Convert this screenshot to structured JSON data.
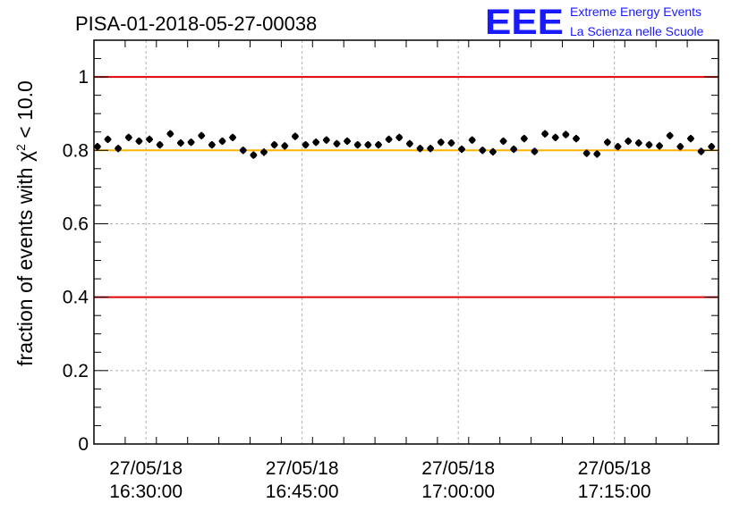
{
  "chart_data": {
    "type": "scatter",
    "title": "PISA-01-2018-05-27-00038",
    "ylabel": "fraction of events with χ",
    "ylabel_sup": "2",
    "ylabel_suffix": " < 10.0",
    "xlabel": "",
    "ylim": [
      0,
      1.1
    ],
    "yticks": [
      "0",
      "0.2",
      "0.4",
      "0.6",
      "0.8",
      "1"
    ],
    "yticks_values": [
      0,
      0.2,
      0.4,
      0.6,
      0.8,
      1.0
    ],
    "xlim": [
      "2018-05-27 16:25:00",
      "2018-05-27 17:25:00"
    ],
    "xticks": [
      {
        "value": "2018-05-27 16:30:00",
        "date": "27/05/18",
        "time": "16:30:00"
      },
      {
        "value": "2018-05-27 16:45:00",
        "date": "27/05/18",
        "time": "16:45:00"
      },
      {
        "value": "2018-05-27 17:00:00",
        "date": "27/05/18",
        "time": "17:00:00"
      },
      {
        "value": "2018-05-27 17:15:00",
        "date": "27/05/18",
        "time": "17:15:00"
      }
    ],
    "grid": true,
    "reference_lines": [
      {
        "y": 1.0,
        "color": "#e00000"
      },
      {
        "y": 0.8,
        "color": "#ffb300"
      },
      {
        "y": 0.4,
        "color": "#e00000"
      }
    ],
    "series": [
      {
        "color": "#000000",
        "x": [
          "16:25:20",
          "16:26:20",
          "16:27:20",
          "16:28:20",
          "16:29:20",
          "16:30:20",
          "16:31:20",
          "16:32:20",
          "16:33:20",
          "16:34:20",
          "16:35:20",
          "16:36:20",
          "16:37:20",
          "16:38:20",
          "16:39:20",
          "16:40:20",
          "16:41:20",
          "16:42:20",
          "16:43:20",
          "16:44:20",
          "16:45:20",
          "16:46:20",
          "16:47:20",
          "16:48:20",
          "16:49:20",
          "16:50:20",
          "16:51:20",
          "16:52:20",
          "16:53:20",
          "16:54:20",
          "16:55:20",
          "16:56:20",
          "16:57:20",
          "16:58:20",
          "16:59:20",
          "17:00:20",
          "17:01:20",
          "17:02:20",
          "17:03:20",
          "17:04:20",
          "17:05:20",
          "17:06:20",
          "17:07:20",
          "17:08:20",
          "17:09:20",
          "17:10:20",
          "17:11:20",
          "17:12:20",
          "17:13:20",
          "17:14:20",
          "17:15:20",
          "17:16:20",
          "17:17:20",
          "17:18:20",
          "17:19:20",
          "17:20:20",
          "17:21:20",
          "17:22:20",
          "17:23:20",
          "17:24:20"
        ],
        "y": [
          0.81,
          0.83,
          0.805,
          0.835,
          0.825,
          0.83,
          0.815,
          0.845,
          0.82,
          0.822,
          0.84,
          0.815,
          0.825,
          0.835,
          0.8,
          0.787,
          0.795,
          0.815,
          0.812,
          0.838,
          0.815,
          0.822,
          0.828,
          0.818,
          0.825,
          0.815,
          0.815,
          0.815,
          0.83,
          0.835,
          0.818,
          0.805,
          0.805,
          0.822,
          0.82,
          0.803,
          0.828,
          0.8,
          0.796,
          0.825,
          0.803,
          0.832,
          0.797,
          0.845,
          0.835,
          0.843,
          0.832,
          0.792,
          0.79,
          0.822,
          0.81,
          0.825,
          0.82,
          0.815,
          0.812,
          0.84,
          0.81,
          0.832,
          0.797,
          0.81
        ],
        "yerr": 0.01,
        "xerr_seconds": 20
      }
    ]
  },
  "logo": {
    "letters": "EEE",
    "line1": "Extreme Energy Events",
    "line2": "La Scienza nelle Scuole"
  }
}
